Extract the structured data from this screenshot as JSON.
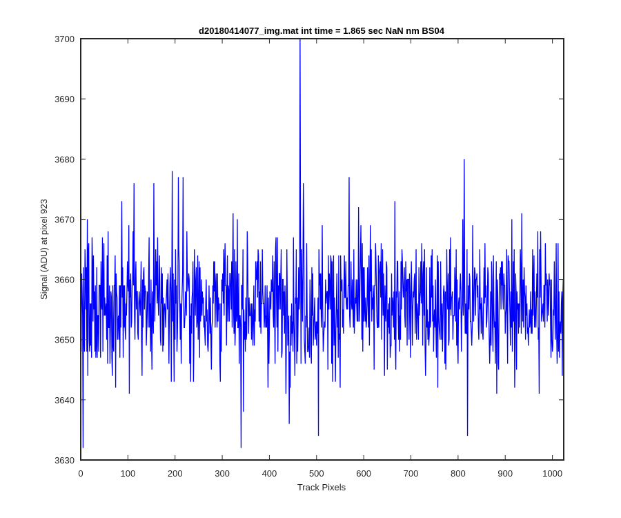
{
  "chart_data": {
    "type": "line",
    "title": "d20180414077_img.mat int time = 1.865 sec  NaN nm BS04",
    "xlabel": "Track Pixels",
    "ylabel": "Signal (ADU) at pixel 923",
    "xlim": [
      0,
      1024
    ],
    "ylim": [
      3630,
      3700
    ],
    "xticks": [
      0,
      100,
      200,
      300,
      400,
      500,
      600,
      700,
      800,
      900,
      1000
    ],
    "yticks": [
      3630,
      3640,
      3650,
      3660,
      3670,
      3680,
      3690,
      3700
    ],
    "grid": false,
    "line_color": "#0000ff",
    "series": [
      {
        "x_start": 1,
        "x_step": 1,
        "count": 1024,
        "mean": 3656,
        "min": 3632,
        "max": 3700,
        "notable_points": [
          {
            "x": 5,
            "y": 3632
          },
          {
            "x": 87,
            "y": 3673
          },
          {
            "x": 113,
            "y": 3676
          },
          {
            "x": 155,
            "y": 3676
          },
          {
            "x": 194,
            "y": 3678
          },
          {
            "x": 207,
            "y": 3677
          },
          {
            "x": 217,
            "y": 3677
          },
          {
            "x": 340,
            "y": 3632
          },
          {
            "x": 442,
            "y": 3636
          },
          {
            "x": 465,
            "y": 3700
          },
          {
            "x": 472,
            "y": 3676
          },
          {
            "x": 504,
            "y": 3634
          },
          {
            "x": 569,
            "y": 3677
          },
          {
            "x": 813,
            "y": 3680
          },
          {
            "x": 820,
            "y": 3634
          }
        ]
      }
    ]
  }
}
